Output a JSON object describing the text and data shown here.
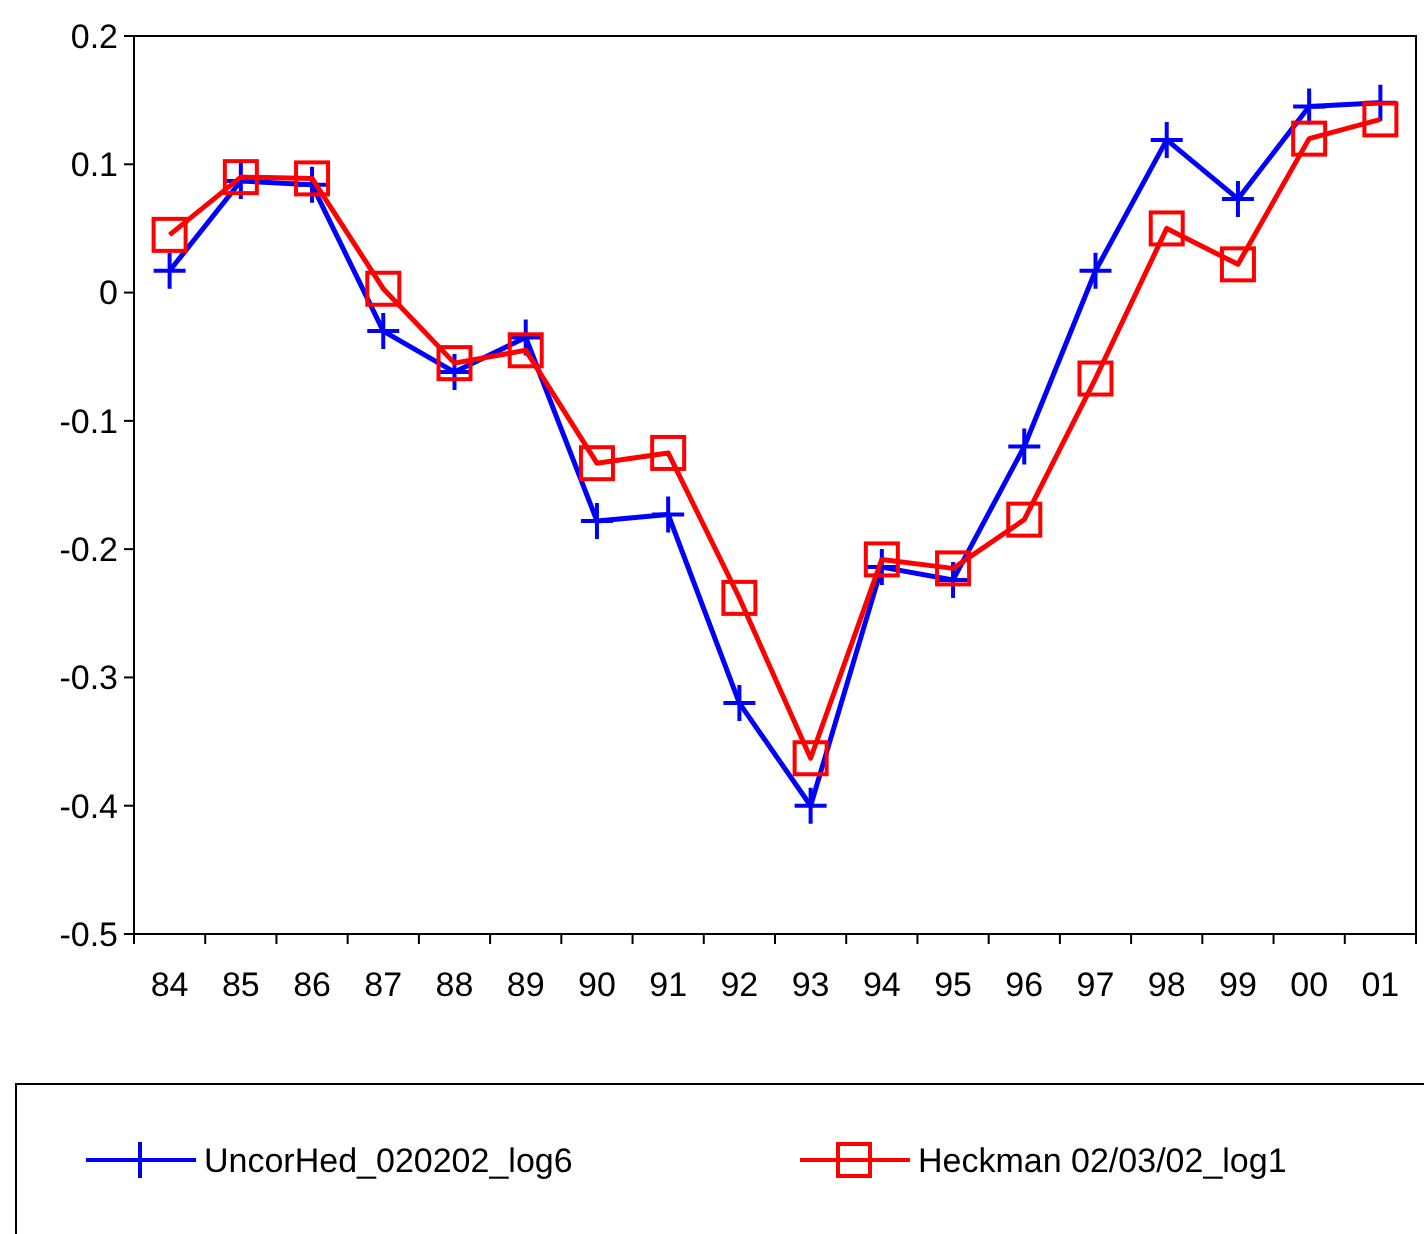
{
  "chart_data": {
    "type": "line",
    "categories": [
      "84",
      "85",
      "86",
      "87",
      "88",
      "89",
      "90",
      "91",
      "92",
      "93",
      "94",
      "95",
      "96",
      "97",
      "98",
      "99",
      "00",
      "01"
    ],
    "series": [
      {
        "name": "UncorHed_020202_log6",
        "color": "#0000ff",
        "marker": "cross",
        "values": [
          0.017,
          0.087,
          0.084,
          -0.03,
          -0.062,
          -0.035,
          -0.178,
          -0.173,
          -0.32,
          -0.4,
          -0.214,
          -0.224,
          -0.12,
          0.017,
          0.119,
          0.073,
          0.145,
          0.148
        ]
      },
      {
        "name": "Heckman 02/03/02_log1",
        "color": "#ff0000",
        "marker": "square",
        "values": [
          0.045,
          0.09,
          0.089,
          0.003,
          -0.055,
          -0.045,
          -0.133,
          -0.125,
          -0.238,
          -0.363,
          -0.208,
          -0.215,
          -0.177,
          -0.067,
          0.05,
          0.022,
          0.12,
          0.135
        ]
      }
    ],
    "ylim": [
      -0.5,
      0.2
    ],
    "yticks": [
      {
        "value": -0.5,
        "label": "-0.5"
      },
      {
        "value": -0.4,
        "label": "-0.4"
      },
      {
        "value": -0.3,
        "label": "-0.3"
      },
      {
        "value": -0.2,
        "label": "-0.2"
      },
      {
        "value": -0.1,
        "label": "-0.1"
      },
      0,
      0.1,
      0.2
    ],
    "grid": false,
    "legend": "bottom",
    "line_style": "solid"
  }
}
